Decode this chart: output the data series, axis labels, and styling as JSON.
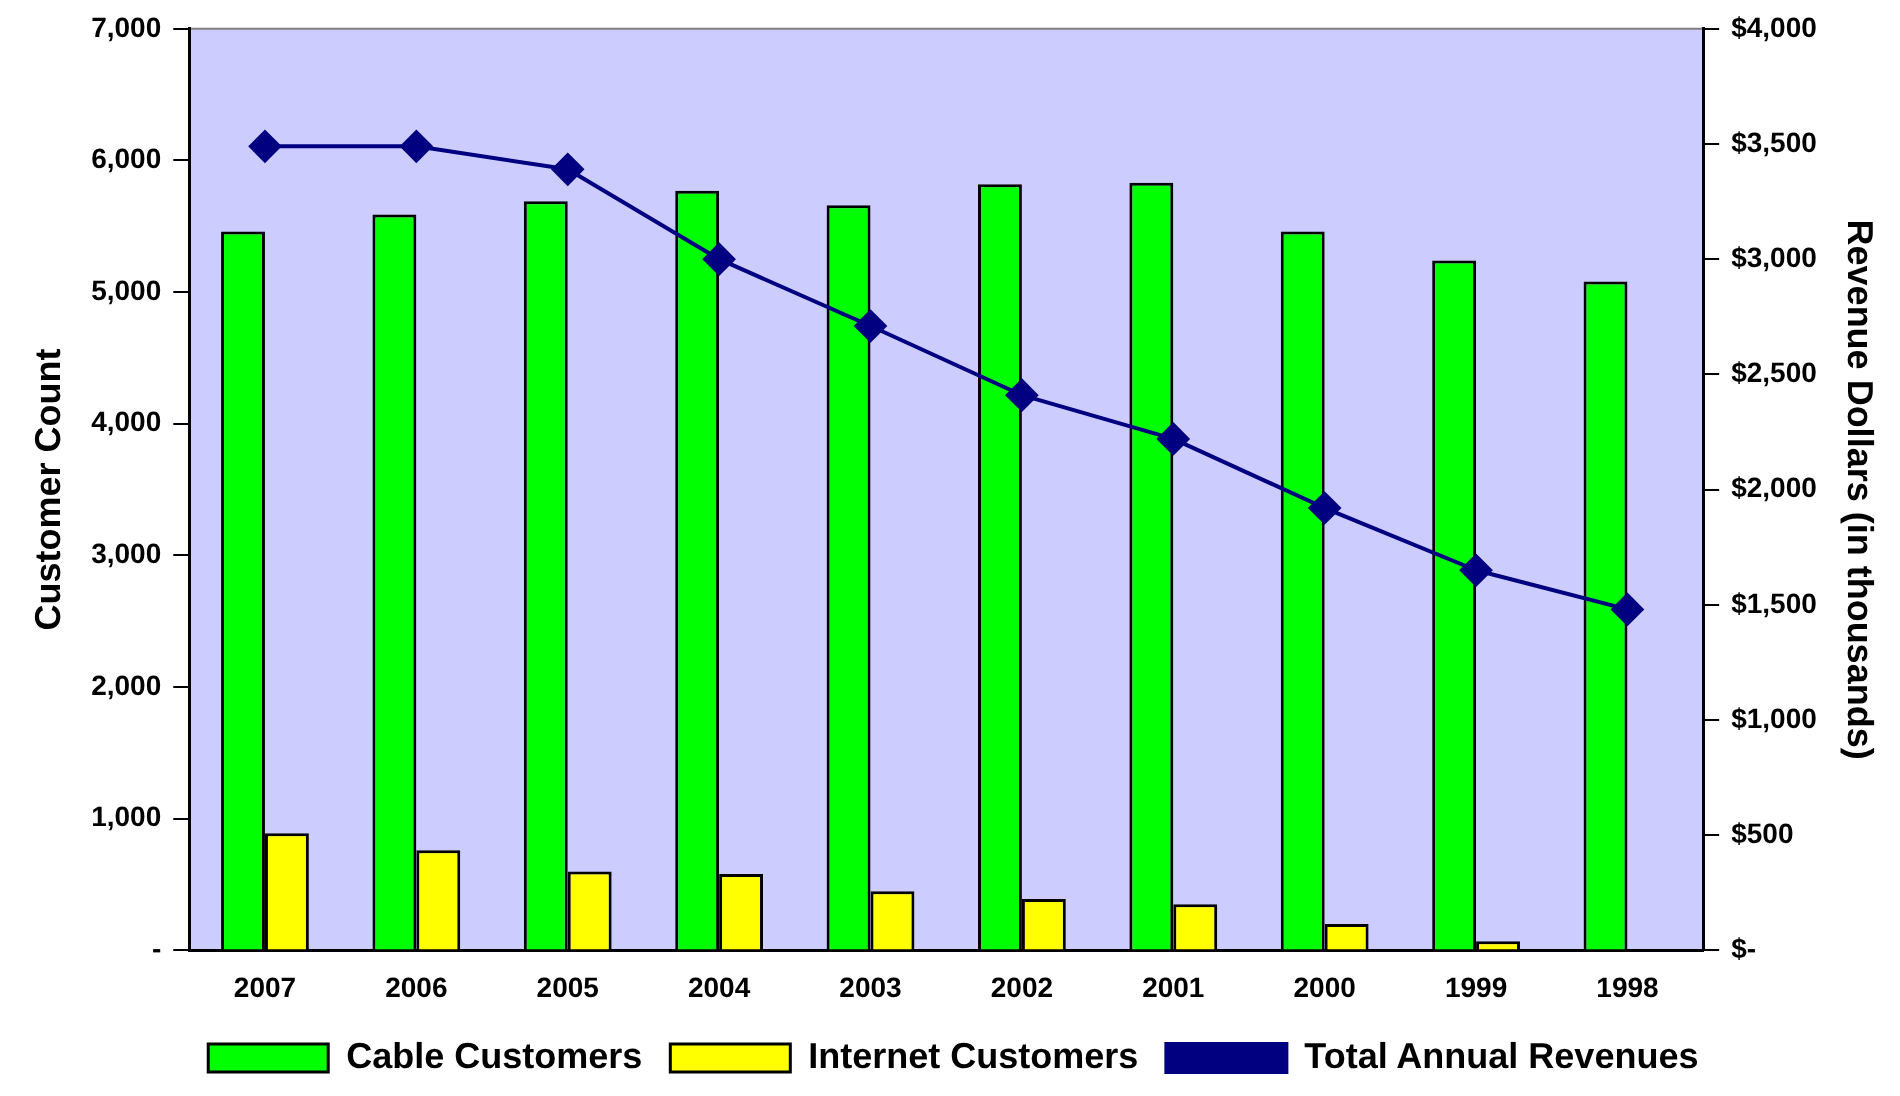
{
  "chart_data": {
    "type": "bar",
    "ylabel": "Customer Count",
    "y2label": "Revenue Dollars (in thousands)",
    "categories": [
      "2007",
      "2006",
      "2005",
      "2004",
      "2003",
      "2002",
      "2001",
      "2000",
      "1999",
      "1998"
    ],
    "series": [
      {
        "name": "Cable Customers",
        "color": "#00ff00",
        "values": [
          5460,
          5590,
          5690,
          5770,
          5660,
          5820,
          5830,
          5460,
          5240,
          5080
        ]
      },
      {
        "name": "Internet Customers",
        "color": "#ffff00",
        "values": [
          890,
          760,
          600,
          580,
          450,
          390,
          350,
          200,
          70,
          0
        ]
      },
      {
        "name": "Total Annual Revenues",
        "type": "line",
        "axis": "y2",
        "color": "#000080",
        "marker": "diamond",
        "values": [
          3490,
          3490,
          3390,
          3000,
          2710,
          2410,
          2220,
          1920,
          1650,
          1480
        ]
      }
    ],
    "ylim": [
      0,
      7000
    ],
    "yticks": [
      {
        "value": 0,
        "label": "-"
      },
      {
        "value": 1000,
        "label": "1,000"
      },
      {
        "value": 2000,
        "label": "2,000"
      },
      {
        "value": 3000,
        "label": "3,000"
      },
      {
        "value": 4000,
        "label": "4,000"
      },
      {
        "value": 5000,
        "label": "5,000"
      },
      {
        "value": 6000,
        "label": "6,000"
      },
      {
        "value": 7000,
        "label": "7,000"
      }
    ],
    "y2lim": [
      0,
      4000
    ],
    "y2ticks": [
      {
        "value": 0,
        "label": "$-"
      },
      {
        "value": 500,
        "label": "$500"
      },
      {
        "value": 1000,
        "label": "$1,000"
      },
      {
        "value": 1500,
        "label": "$1,500"
      },
      {
        "value": 2000,
        "label": "$2,000"
      },
      {
        "value": 2500,
        "label": "$2,500"
      },
      {
        "value": 3000,
        "label": "$3,000"
      },
      {
        "value": 3500,
        "label": "$3,500"
      },
      {
        "value": 4000,
        "label": "$4,000"
      }
    ],
    "grid": false,
    "legend": "bottom"
  }
}
